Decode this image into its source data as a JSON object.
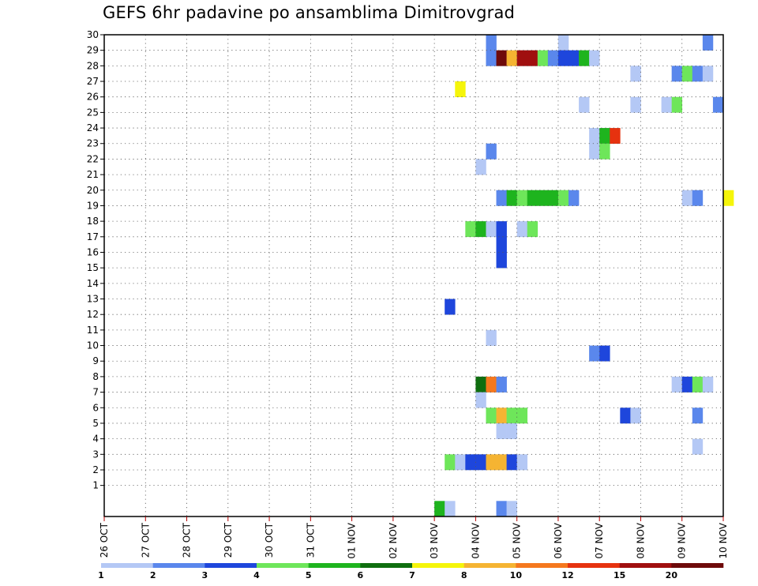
{
  "chart_data": {
    "type": "heatmap",
    "title": "GEFS 6hr padavine po ansamblima Dimitrovgrad",
    "xlabel": "",
    "ylabel": "",
    "x_start": "26 OCT 00Z",
    "x_end": "10 NOV 00Z",
    "x_step_hours": 6,
    "x_ticks": [
      "26 OCT",
      "27 OCT",
      "28 OCT",
      "29 OCT",
      "30 OCT",
      "31 OCT",
      "01 NOV",
      "02 NOV",
      "03 NOV",
      "04 NOV",
      "05 NOV",
      "06 NOV",
      "07 NOV",
      "08 NOV",
      "09 NOV",
      "10 NOV"
    ],
    "y_members": [
      1,
      2,
      3,
      4,
      5,
      6,
      7,
      8,
      9,
      10,
      11,
      12,
      13,
      14,
      15,
      16,
      17,
      18,
      19,
      20,
      21,
      22,
      23,
      24,
      25,
      26,
      27,
      28,
      29,
      30
    ],
    "grid": "dotted",
    "legend": {
      "placement": "bottom",
      "colors": [
        "#b4c8f5",
        "#5a87ec",
        "#1e46dc",
        "#6ee65a",
        "#1eb41e",
        "#0f6e0f",
        "#f5f50a",
        "#f5b432",
        "#f5781e",
        "#e6320f",
        "#a00f0f",
        "#6e0a0a"
      ],
      "labels": [
        "1",
        "2",
        "3",
        "4",
        "5",
        "6",
        "7",
        "8",
        "10",
        "12",
        "15",
        "20"
      ]
    },
    "cells": [
      {
        "member": 30,
        "step": 37,
        "value": 2
      },
      {
        "member": 30,
        "step": 44,
        "value": 1
      },
      {
        "member": 30,
        "step": 58,
        "value": 2
      },
      {
        "member": 29,
        "step": 37,
        "value": 2
      },
      {
        "member": 29,
        "step": 38,
        "value": 20
      },
      {
        "member": 29,
        "step": 39,
        "value": 8
      },
      {
        "member": 29,
        "step": 40,
        "value": 15
      },
      {
        "member": 29,
        "step": 41,
        "value": 15
      },
      {
        "member": 29,
        "step": 42,
        "value": 4
      },
      {
        "member": 29,
        "step": 43,
        "value": 2
      },
      {
        "member": 29,
        "step": 44,
        "value": 3
      },
      {
        "member": 29,
        "step": 45,
        "value": 3
      },
      {
        "member": 29,
        "step": 46,
        "value": 5
      },
      {
        "member": 29,
        "step": 47,
        "value": 1
      },
      {
        "member": 28,
        "step": 51,
        "value": 1
      },
      {
        "member": 28,
        "step": 55,
        "value": 2
      },
      {
        "member": 28,
        "step": 56,
        "value": 4
      },
      {
        "member": 28,
        "step": 57,
        "value": 2
      },
      {
        "member": 28,
        "step": 58,
        "value": 1
      },
      {
        "member": 27,
        "step": 34,
        "value": 7
      },
      {
        "member": 26,
        "step": 46,
        "value": 1
      },
      {
        "member": 26,
        "step": 51,
        "value": 1
      },
      {
        "member": 26,
        "step": 54,
        "value": 1
      },
      {
        "member": 26,
        "step": 55,
        "value": 4
      },
      {
        "member": 26,
        "step": 59,
        "value": 2
      },
      {
        "member": 24,
        "step": 47,
        "value": 1
      },
      {
        "member": 24,
        "step": 48,
        "value": 5
      },
      {
        "member": 24,
        "step": 49,
        "value": 12
      },
      {
        "member": 23,
        "step": 37,
        "value": 2
      },
      {
        "member": 23,
        "step": 47,
        "value": 1
      },
      {
        "member": 23,
        "step": 48,
        "value": 4
      },
      {
        "member": 22,
        "step": 36,
        "value": 1
      },
      {
        "member": 20,
        "step": 38,
        "value": 2
      },
      {
        "member": 20,
        "step": 39,
        "value": 5
      },
      {
        "member": 20,
        "step": 40,
        "value": 4
      },
      {
        "member": 20,
        "step": 41,
        "value": 5
      },
      {
        "member": 20,
        "step": 42,
        "value": 5
      },
      {
        "member": 20,
        "step": 43,
        "value": 5
      },
      {
        "member": 20,
        "step": 44,
        "value": 4
      },
      {
        "member": 20,
        "step": 45,
        "value": 2
      },
      {
        "member": 20,
        "step": 56,
        "value": 1
      },
      {
        "member": 20,
        "step": 57,
        "value": 2
      },
      {
        "member": 20,
        "step": 60,
        "value": 7
      },
      {
        "member": 18,
        "step": 35,
        "value": 4
      },
      {
        "member": 18,
        "step": 36,
        "value": 5
      },
      {
        "member": 18,
        "step": 37,
        "value": 1
      },
      {
        "member": 18,
        "step": 38,
        "value": 3
      },
      {
        "member": 18,
        "step": 40,
        "value": 1
      },
      {
        "member": 18,
        "step": 41,
        "value": 4
      },
      {
        "member": 17,
        "step": 38,
        "value": 3
      },
      {
        "member": 16,
        "step": 38,
        "value": 3
      },
      {
        "member": 13,
        "step": 33,
        "value": 3
      },
      {
        "member": 11,
        "step": 37,
        "value": 1
      },
      {
        "member": 10,
        "step": 47,
        "value": 2
      },
      {
        "member": 10,
        "step": 48,
        "value": 3
      },
      {
        "member": 8,
        "step": 36,
        "value": 6
      },
      {
        "member": 8,
        "step": 37,
        "value": 10
      },
      {
        "member": 8,
        "step": 38,
        "value": 2
      },
      {
        "member": 8,
        "step": 55,
        "value": 1
      },
      {
        "member": 8,
        "step": 56,
        "value": 3
      },
      {
        "member": 8,
        "step": 57,
        "value": 4
      },
      {
        "member": 8,
        "step": 58,
        "value": 1
      },
      {
        "member": 7,
        "step": 36,
        "value": 1
      },
      {
        "member": 6,
        "step": 37,
        "value": 4
      },
      {
        "member": 6,
        "step": 38,
        "value": 8
      },
      {
        "member": 6,
        "step": 39,
        "value": 4
      },
      {
        "member": 6,
        "step": 40,
        "value": 4
      },
      {
        "member": 6,
        "step": 50,
        "value": 3
      },
      {
        "member": 6,
        "step": 51,
        "value": 1
      },
      {
        "member": 6,
        "step": 57,
        "value": 2
      },
      {
        "member": 5,
        "step": 38,
        "value": 1
      },
      {
        "member": 5,
        "step": 39,
        "value": 1
      },
      {
        "member": 4,
        "step": 57,
        "value": 1
      },
      {
        "member": 3,
        "step": 33,
        "value": 4
      },
      {
        "member": 3,
        "step": 34,
        "value": 1
      },
      {
        "member": 3,
        "step": 35,
        "value": 3
      },
      {
        "member": 3,
        "step": 36,
        "value": 3
      },
      {
        "member": 3,
        "step": 37,
        "value": 8
      },
      {
        "member": 3,
        "step": 38,
        "value": 8
      },
      {
        "member": 3,
        "step": 39,
        "value": 3
      },
      {
        "member": 3,
        "step": 40,
        "value": 1
      },
      {
        "member": 0,
        "step": 32,
        "value": 5
      },
      {
        "member": 0,
        "step": 33,
        "value": 1
      },
      {
        "member": 0,
        "step": 38,
        "value": 2
      },
      {
        "member": 0,
        "step": 39,
        "value": 1
      }
    ]
  }
}
